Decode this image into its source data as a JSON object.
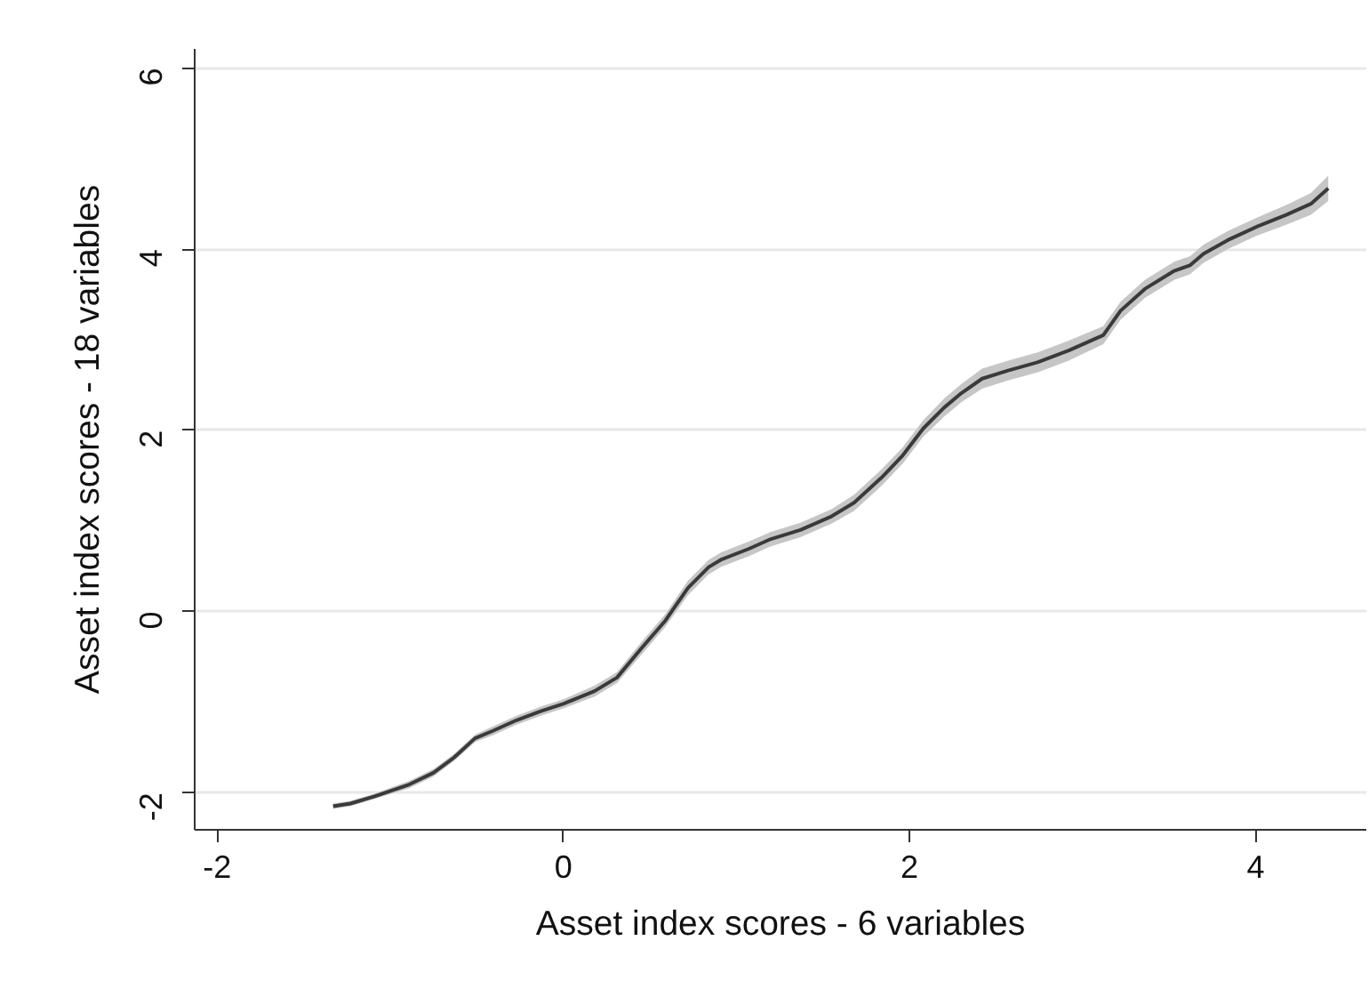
{
  "chart_data": {
    "type": "line",
    "xlabel": "Asset index scores - 6 variables",
    "ylabel": "Asset index scores - 18 variables",
    "xlim": [
      -2.13,
      4.64
    ],
    "ylim": [
      -2.41,
      6.21
    ],
    "xticks": [
      -2,
      0,
      2,
      4
    ],
    "yticks": [
      -2,
      0,
      2,
      4,
      6
    ],
    "grid": "y",
    "line_style": "solid",
    "x": [
      -1.33,
      -1.23,
      -1.09,
      -0.89,
      -0.75,
      -0.63,
      -0.51,
      -0.41,
      -0.27,
      -0.13,
      0.0,
      0.18,
      0.31,
      0.45,
      0.59,
      0.72,
      0.84,
      0.91,
      1.07,
      1.2,
      1.37,
      1.55,
      1.68,
      1.84,
      1.96,
      2.08,
      2.2,
      2.3,
      2.42,
      2.57,
      2.74,
      2.92,
      3.12,
      3.22,
      3.36,
      3.53,
      3.62,
      3.7,
      3.84,
      4.01,
      4.18,
      4.32,
      4.42
    ],
    "series": [
      {
        "color": "#3a3a3a",
        "values": [
          -2.15,
          -2.12,
          -2.04,
          -1.91,
          -1.78,
          -1.61,
          -1.4,
          -1.32,
          -1.2,
          -1.1,
          -1.02,
          -0.88,
          -0.73,
          -0.41,
          -0.1,
          0.26,
          0.49,
          0.57,
          0.69,
          0.8,
          0.9,
          1.05,
          1.2,
          1.48,
          1.72,
          2.02,
          2.25,
          2.41,
          2.57,
          2.66,
          2.75,
          2.88,
          3.05,
          3.32,
          3.56,
          3.76,
          3.82,
          3.95,
          4.1,
          4.25,
          4.38,
          4.5,
          4.67
        ],
        "lower": [
          -2.18,
          -2.15,
          -2.07,
          -1.95,
          -1.82,
          -1.65,
          -1.44,
          -1.37,
          -1.25,
          -1.15,
          -1.07,
          -0.94,
          -0.79,
          -0.48,
          -0.17,
          0.18,
          0.41,
          0.49,
          0.61,
          0.72,
          0.82,
          0.97,
          1.11,
          1.39,
          1.63,
          1.93,
          2.15,
          2.31,
          2.46,
          2.55,
          2.64,
          2.77,
          2.95,
          3.22,
          3.46,
          3.66,
          3.72,
          3.85,
          4.0,
          4.15,
          4.27,
          4.38,
          4.53
        ],
        "upper": [
          -2.12,
          -2.09,
          -2.01,
          -1.87,
          -1.74,
          -1.57,
          -1.36,
          -1.27,
          -1.15,
          -1.05,
          -0.97,
          -0.82,
          -0.67,
          -0.34,
          -0.03,
          0.34,
          0.57,
          0.65,
          0.77,
          0.88,
          0.98,
          1.13,
          1.29,
          1.57,
          1.81,
          2.11,
          2.35,
          2.51,
          2.68,
          2.77,
          2.86,
          2.99,
          3.15,
          3.42,
          3.66,
          3.86,
          3.92,
          4.05,
          4.2,
          4.35,
          4.49,
          4.62,
          4.81
        ]
      }
    ]
  }
}
